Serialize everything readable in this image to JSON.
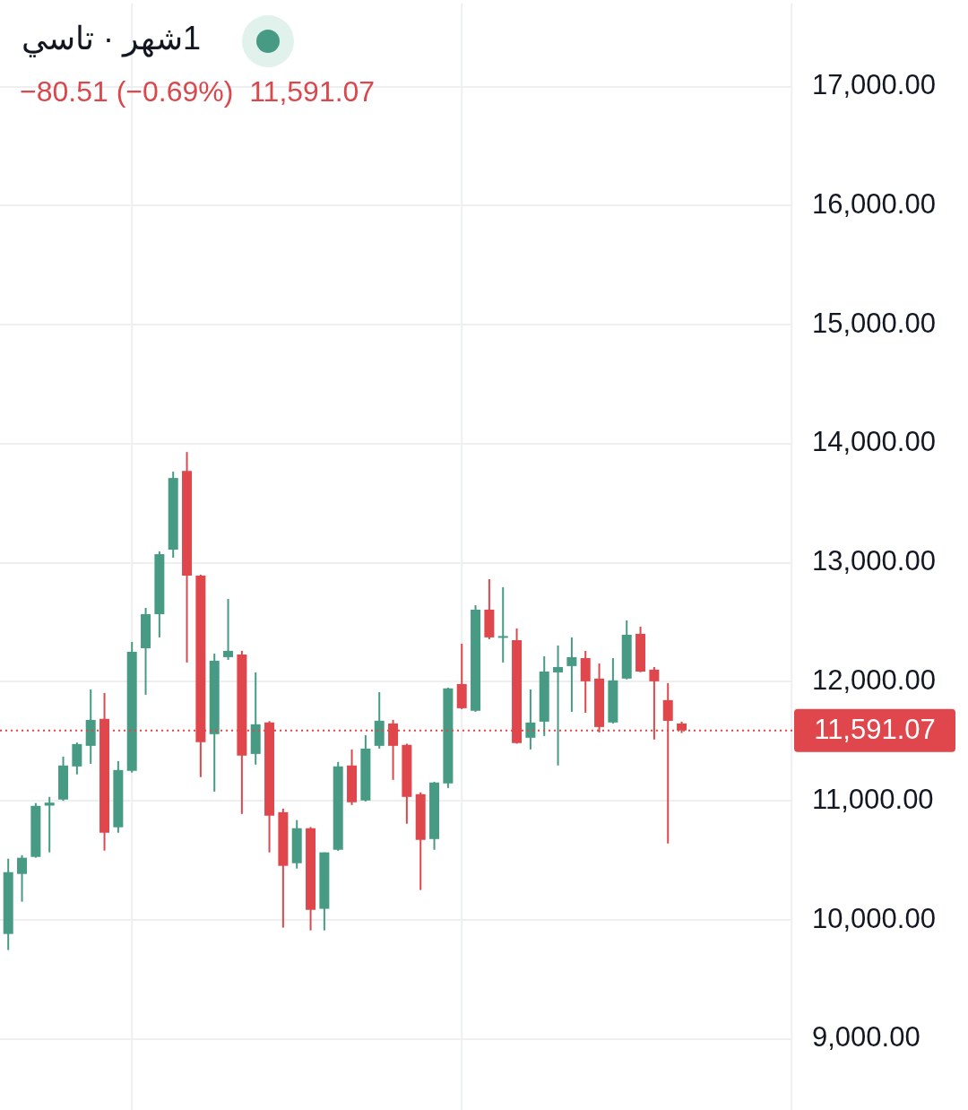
{
  "chart_data": {
    "type": "candlestick",
    "title": "1شهر · تاسي",
    "subtitle": "−80.51 (−0.69%)  11,591.07",
    "categories": [
      null,
      null,
      null,
      null,
      null,
      null,
      null,
      null,
      null,
      null,
      null,
      null,
      null,
      null,
      null,
      null,
      null,
      null,
      null,
      null,
      null,
      null,
      null,
      null,
      null,
      null,
      null,
      null,
      null,
      null,
      null,
      null,
      null,
      null,
      null,
      null,
      null,
      null,
      null,
      null,
      null,
      null,
      null,
      null,
      null,
      null,
      null,
      null,
      null,
      null
    ],
    "ohlc": [
      [
        9882,
        10514,
        9747,
        10401
      ],
      [
        10386,
        10544,
        10153,
        10522
      ],
      [
        10529,
        10981,
        10522,
        10958
      ],
      [
        10960,
        11033,
        10567,
        10985
      ],
      [
        11011,
        11372,
        11000,
        11297
      ],
      [
        11289,
        11490,
        11222,
        11477
      ],
      [
        11462,
        11936,
        11311,
        11680
      ],
      [
        11688,
        11906,
        10582,
        10732
      ],
      [
        10778,
        11334,
        10732,
        11259
      ],
      [
        11252,
        12335,
        11237,
        12252
      ],
      [
        12282,
        12621,
        11891,
        12568
      ],
      [
        12568,
        13095,
        12373,
        13072
      ],
      [
        13110,
        13765,
        13042,
        13712
      ],
      [
        13772,
        13930,
        12162,
        12892
      ],
      [
        12892,
        12900,
        11199,
        11492
      ],
      [
        11560,
        12237,
        11078,
        12177
      ],
      [
        12207,
        12696,
        12184,
        12260
      ],
      [
        12229,
        12260,
        10890,
        11379
      ],
      [
        11394,
        12079,
        11304,
        11643
      ],
      [
        11658,
        11670,
        10567,
        10875
      ],
      [
        10905,
        10935,
        9935,
        10454
      ],
      [
        10476,
        10838,
        10431,
        10770
      ],
      [
        10770,
        10780,
        9912,
        10085
      ],
      [
        10093,
        10567,
        9912,
        10567
      ],
      [
        10589,
        11327,
        10580,
        11289
      ],
      [
        11297,
        11432,
        10965,
        10988
      ],
      [
        11003,
        11552,
        10995,
        11439
      ],
      [
        11462,
        11913,
        11439,
        11673
      ],
      [
        11650,
        11680,
        11176,
        11462
      ],
      [
        11470,
        11480,
        10808,
        11033
      ],
      [
        11056,
        11071,
        10251,
        10672
      ],
      [
        10679,
        11160,
        10589,
        11154
      ],
      [
        11146,
        11951,
        11108,
        11944
      ],
      [
        11981,
        12320,
        11770,
        11778
      ],
      [
        11756,
        12643,
        11748,
        12606
      ],
      [
        12606,
        12862,
        12358,
        12373
      ],
      [
        12373,
        12794,
        12162,
        12380
      ],
      [
        12350,
        12448,
        11480,
        11485
      ],
      [
        11530,
        11936,
        11432,
        11658
      ],
      [
        11665,
        12214,
        11545,
        12086
      ],
      [
        12079,
        12305,
        11297,
        12124
      ],
      [
        12132,
        12373,
        11748,
        12207
      ],
      [
        12199,
        12260,
        11740,
        12004
      ],
      [
        12027,
        12154,
        11575,
        11620
      ],
      [
        11658,
        12199,
        11650,
        12012
      ],
      [
        12027,
        12516,
        12020,
        12395
      ],
      [
        12403,
        12463,
        12080,
        12086
      ],
      [
        12102,
        12124,
        11515,
        12004
      ],
      [
        11846,
        11989,
        10642,
        11672
      ],
      [
        11650,
        11665,
        11570,
        11591.07
      ]
    ],
    "colors": [
      "#479a83",
      "#479a83",
      "#479a83",
      "#479a83",
      "#479a83",
      "#479a83",
      "#479a83",
      "#e0474c",
      "#479a83",
      "#479a83",
      "#479a83",
      "#479a83",
      "#479a83",
      "#e0474c",
      "#e0474c",
      "#479a83",
      "#479a83",
      "#e0474c",
      "#479a83",
      "#e0474c",
      "#e0474c",
      "#479a83",
      "#e0474c",
      "#479a83",
      "#479a83",
      "#e0474c",
      "#479a83",
      "#479a83",
      "#e0474c",
      "#e0474c",
      "#e0474c",
      "#479a83",
      "#479a83",
      "#e0474c",
      "#479a83",
      "#e0474c",
      "#479a83",
      "#e0474c",
      "#479a83",
      "#479a83",
      "#479a83",
      "#479a83",
      "#e0474c",
      "#e0474c",
      "#479a83",
      "#479a83",
      "#e0474c",
      "#e0474c",
      "#e0474c",
      "#e0474c"
    ],
    "ylim": [
      8400,
      17700
    ],
    "yticks": [
      {
        "value": 9000,
        "label": "9,000.00"
      },
      {
        "value": 10000,
        "label": "10,000.00"
      },
      {
        "value": 11000,
        "label": "11,000.00"
      },
      {
        "value": 12000,
        "label": "12,000.00"
      },
      {
        "value": 13000,
        "label": "13,000.00"
      },
      {
        "value": 14000,
        "label": "14,000.00"
      },
      {
        "value": 15000,
        "label": "15,000.00"
      },
      {
        "value": 16000,
        "label": "16,000.00"
      },
      {
        "value": 17000,
        "label": "17,000.00"
      }
    ],
    "ref_lines": [
      {
        "axis": "y",
        "value": 11591.07,
        "label": "11,591.07",
        "color": "#e0474c",
        "line_style": "dotted"
      }
    ],
    "grid": true,
    "tick_labels": "y"
  }
}
